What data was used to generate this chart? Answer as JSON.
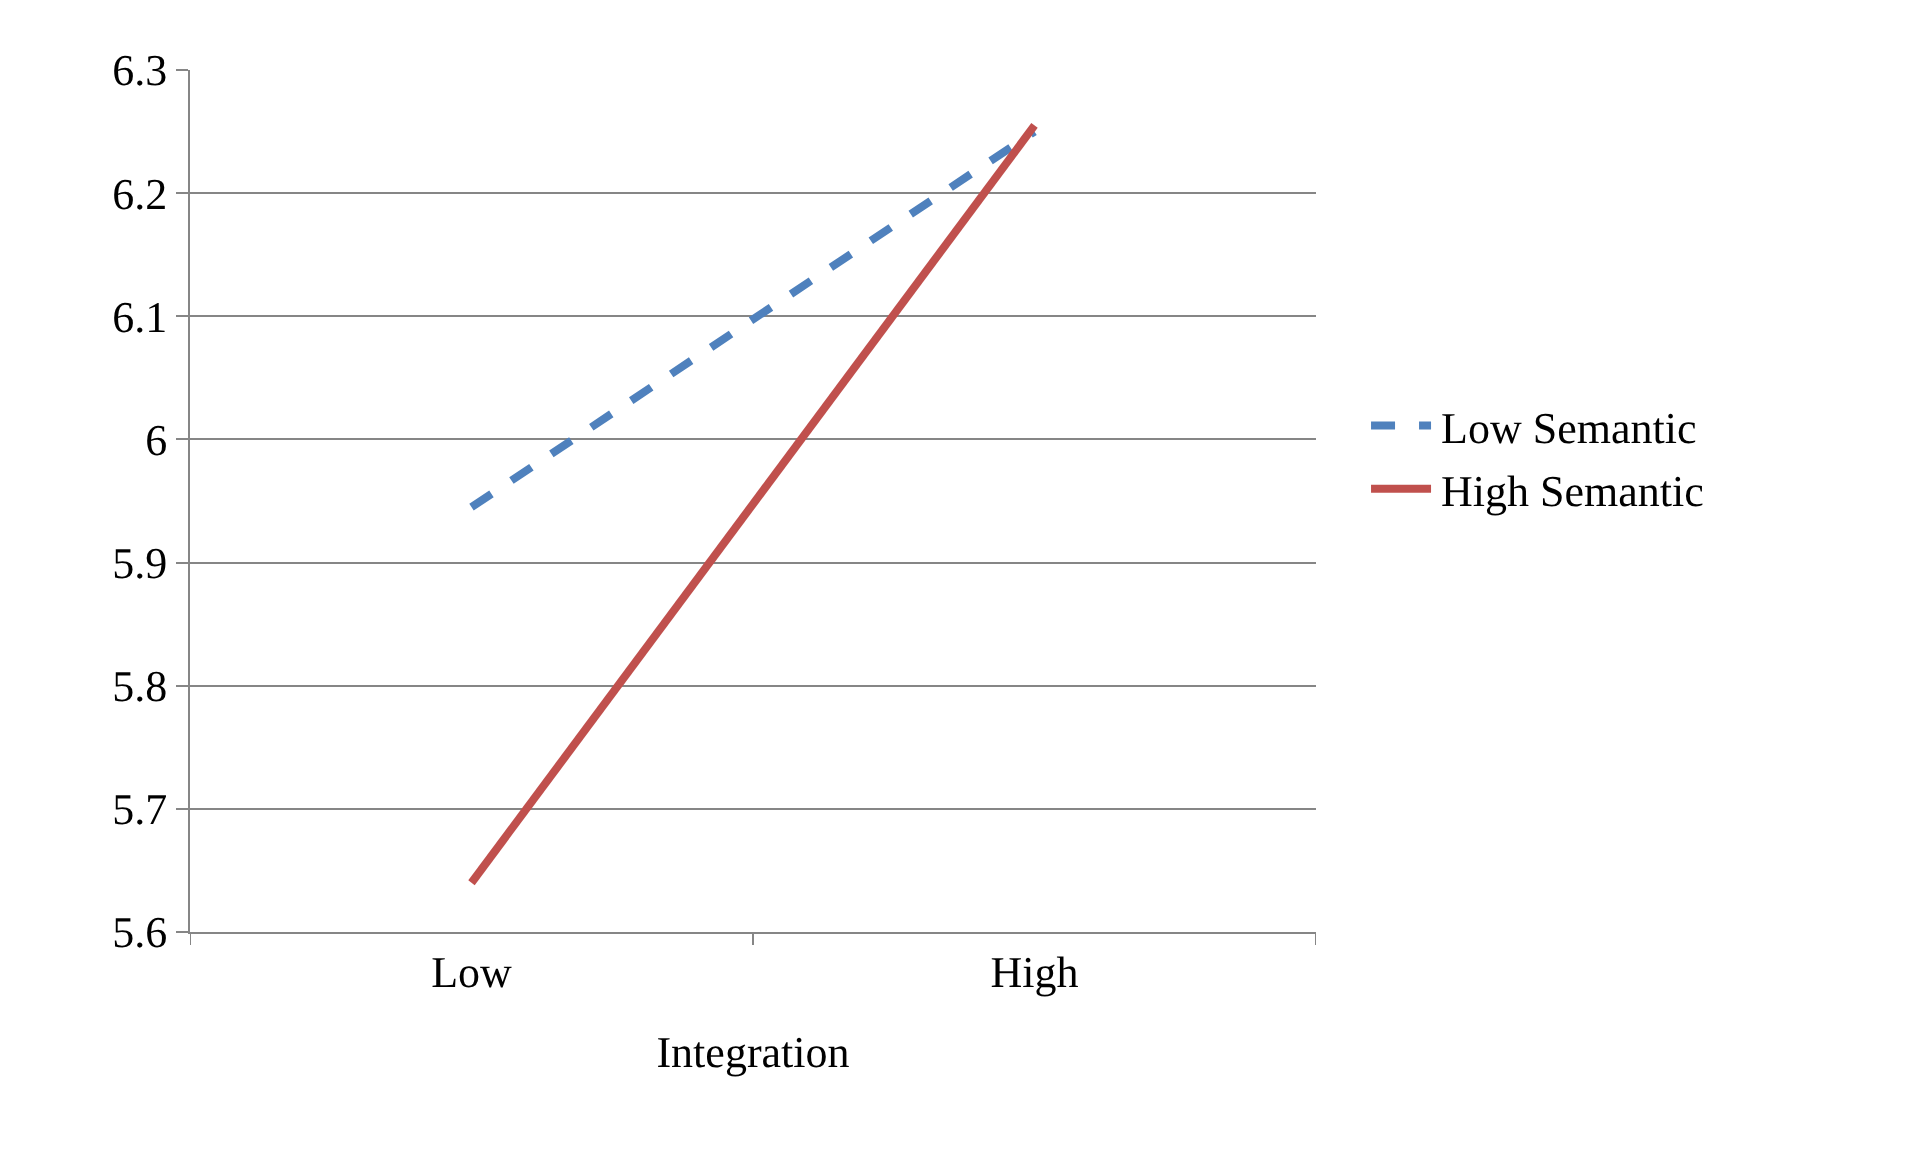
{
  "chart_data": {
    "type": "line",
    "xlabel": "Integration",
    "categories": [
      "Low",
      "High"
    ],
    "series": [
      {
        "name": "Low Semantic",
        "color": "#4f81bd",
        "values": [
          5.945,
          6.25
        ],
        "line_style": "dashed"
      },
      {
        "name": "High Semantic",
        "color": "#c0504d",
        "values": [
          5.64,
          6.255
        ],
        "line_style": "solid"
      }
    ],
    "ylim": [
      5.6,
      6.3
    ],
    "yticks": [
      5.6,
      5.7,
      5.8,
      5.9,
      6,
      6.1,
      6.2,
      6.3
    ],
    "grid": "y",
    "legend": "right",
    "marker": "none"
  }
}
